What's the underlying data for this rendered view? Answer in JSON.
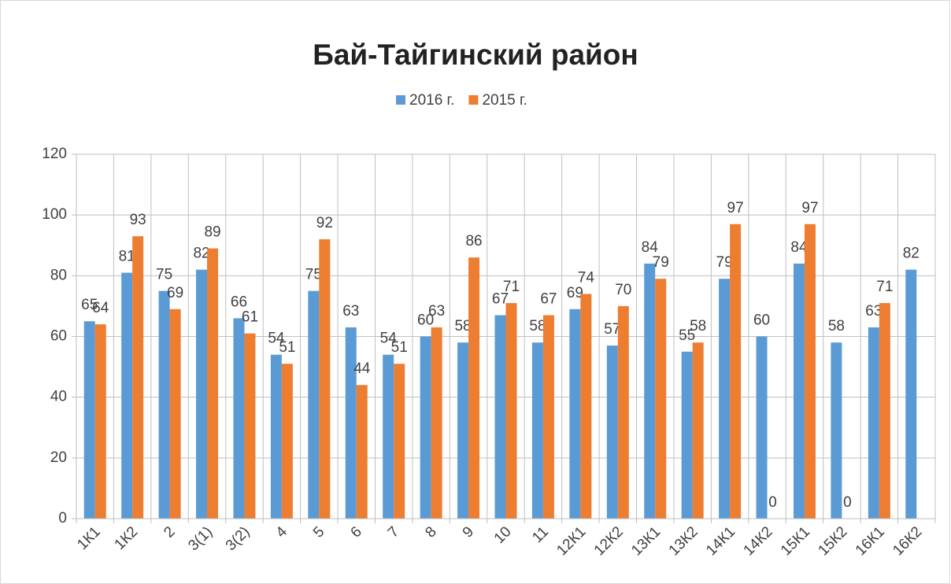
{
  "chart_data": {
    "type": "bar",
    "title": "Бай-Тайгинский район",
    "categories": [
      "1К1",
      "1К2",
      "2",
      "3(1)",
      "3(2)",
      "4",
      "5",
      "6",
      "7",
      "8",
      "9",
      "10",
      "11",
      "12К1",
      "12К2",
      "13К1",
      "13К2",
      "14К1",
      "14К2",
      "15К1",
      "15К2",
      "16К1",
      "16К2"
    ],
    "series": [
      {
        "name": "2016 г.",
        "color": "#5b9bd5",
        "values": [
          65,
          81,
          75,
          82,
          66,
          54,
          75,
          63,
          54,
          60,
          58,
          67,
          58,
          69,
          57,
          84,
          55,
          79,
          60,
          84,
          58,
          63,
          82
        ]
      },
      {
        "name": "2015 г.",
        "color": "#ed7d31",
        "values": [
          64,
          93,
          69,
          89,
          61,
          51,
          92,
          44,
          51,
          63,
          86,
          71,
          67,
          74,
          70,
          79,
          58,
          97,
          0,
          97,
          0,
          71,
          null
        ]
      }
    ],
    "ylim": [
      0,
      120
    ],
    "yticks": [
      0,
      20,
      40,
      60,
      80,
      100,
      120
    ],
    "grid": true,
    "legend": "top"
  }
}
